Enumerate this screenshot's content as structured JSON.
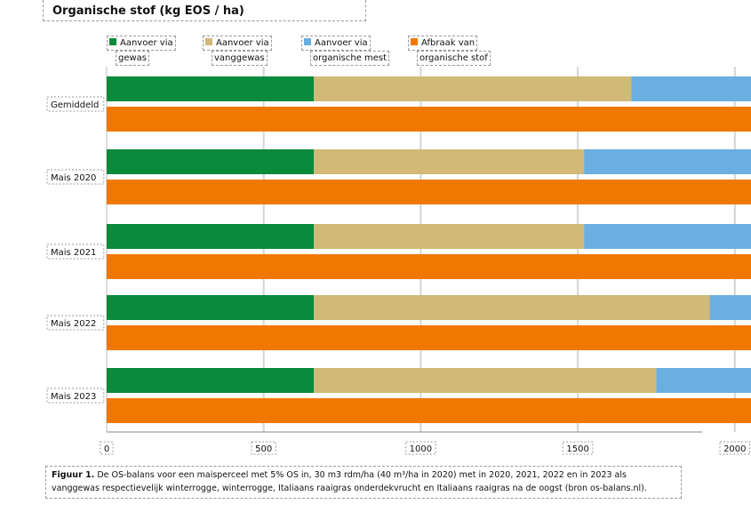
{
  "title": "Organische stof (kg EOS / ha)",
  "legend": [
    {
      "line1": "Aanvoer via",
      "line2": "gewas",
      "color": "#0a8a3c"
    },
    {
      "line1": "Aanvoer via",
      "line2": "vanggewas",
      "color": "#d1ba77"
    },
    {
      "line1": "Aanvoer via",
      "line2": "organische mest",
      "color": "#6aafe0"
    },
    {
      "line1": "Afbraak van",
      "line2": "organische stof",
      "color": "#f07800"
    }
  ],
  "caption": {
    "bold": "Figuur 1.",
    "text": " De OS-balans voor een maisperceel met 5% OS in, 30 m3 rdm/ha (40 m³/ha in 2020) met in 2020, 2021, 2022 en in 2023 als vanggewas respectievelijk winterrogge, winterrogge, Italiaans raaigras onderdekvrucht en Italiaans raaigras na de oogst (bron os-balans.nl)."
  },
  "chart_data": {
    "type": "bar",
    "orientation": "horizontal",
    "stacked": true,
    "title": "Organische stof (kg EOS / ha)",
    "categories": [
      "Gemiddeld",
      "Mais 2020",
      "Mais 2021",
      "Mais 2022",
      "Mais 2023"
    ],
    "xlim": [
      0,
      3800
    ],
    "xticks": [
      0,
      500,
      1000,
      1500,
      2000,
      2500,
      3000,
      3500
    ],
    "grid": true,
    "supply_series": [
      {
        "name": "Aanvoer via gewas",
        "color": "#0a8a3c",
        "values": [
          660,
          660,
          660,
          660,
          660
        ]
      },
      {
        "name": "Aanvoer via vanggewas",
        "color": "#d1ba77",
        "values": [
          1010,
          860,
          860,
          1260,
          1090
        ]
      },
      {
        "name": "Aanvoer via organische mest",
        "color": "#6aafe0",
        "values": [
          1640,
          2010,
          1520,
          1510,
          1500
        ]
      }
    ],
    "breakdown_series": {
      "name": "Afbraak van organische stof",
      "color": "#f07800",
      "values": [
        2300,
        2300,
        2300,
        2300,
        2300
      ]
    }
  }
}
